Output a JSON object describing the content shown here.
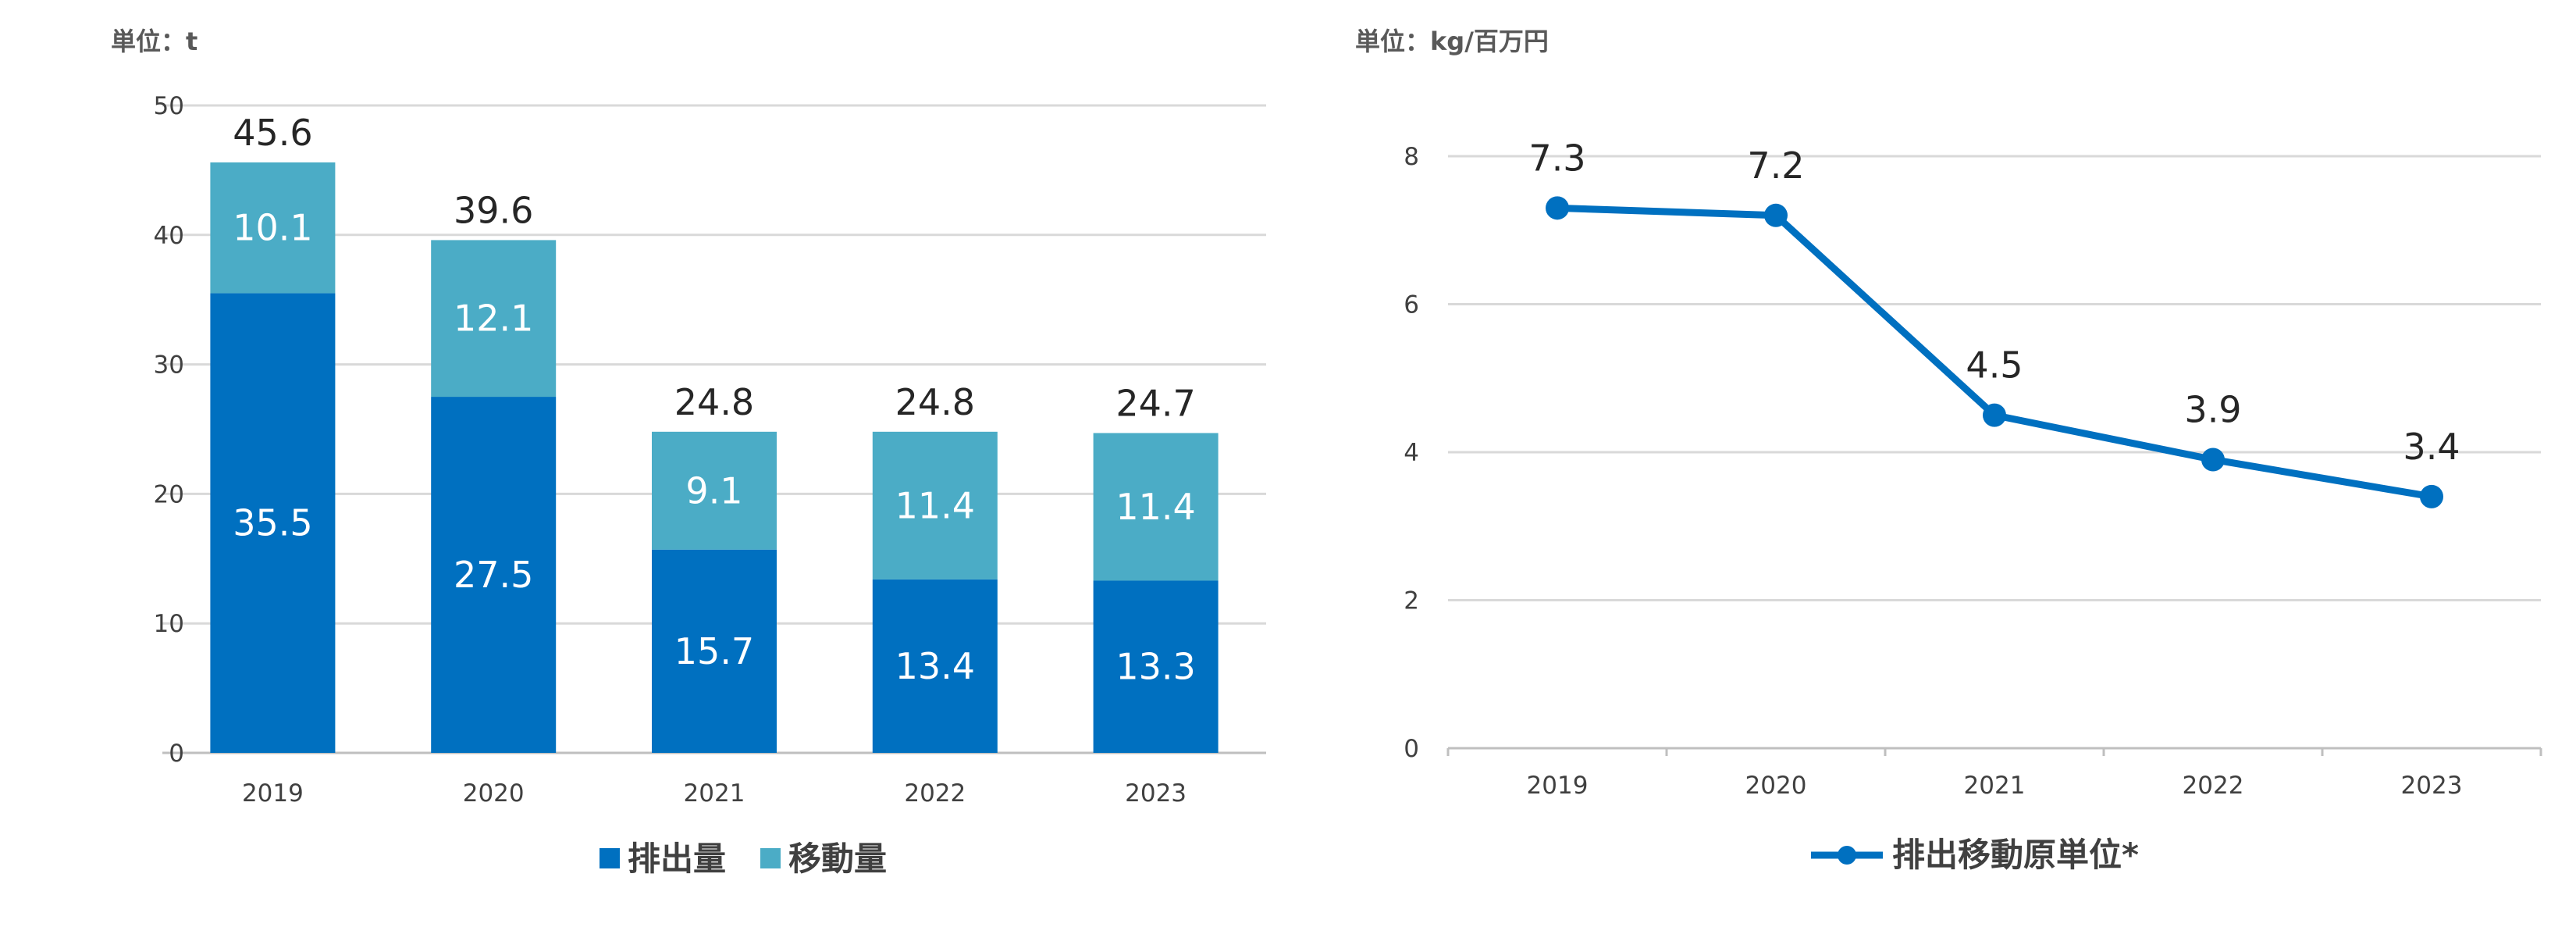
{
  "chart_data": [
    {
      "type": "bar",
      "stacked": true,
      "unit_label": "単位：t",
      "categories": [
        "2019",
        "2020",
        "2021",
        "2022",
        "2023"
      ],
      "series": [
        {
          "name": "排出量",
          "values": [
            35.5,
            27.5,
            15.7,
            13.4,
            13.3
          ],
          "color": "#0070C0"
        },
        {
          "name": "移動量",
          "values": [
            10.1,
            12.1,
            9.1,
            11.4,
            11.4
          ],
          "color": "#4BACC6"
        }
      ],
      "totals": [
        45.6,
        39.6,
        24.8,
        24.8,
        24.7
      ],
      "ylim": [
        0,
        50
      ],
      "yticks": [
        0,
        10,
        20,
        30,
        40,
        50
      ],
      "grid": true,
      "legend": "bottom"
    },
    {
      "type": "line",
      "unit_label": "単位：kg/百万円",
      "categories": [
        "2019",
        "2020",
        "2021",
        "2022",
        "2023"
      ],
      "series": [
        {
          "name": "排出移動原単位*",
          "values": [
            7.3,
            7.2,
            4.5,
            3.9,
            3.4
          ],
          "color": "#0070C0"
        }
      ],
      "ylim": [
        0,
        8
      ],
      "yticks": [
        0,
        2,
        4,
        6,
        8
      ],
      "grid": true,
      "legend": "bottom"
    }
  ]
}
